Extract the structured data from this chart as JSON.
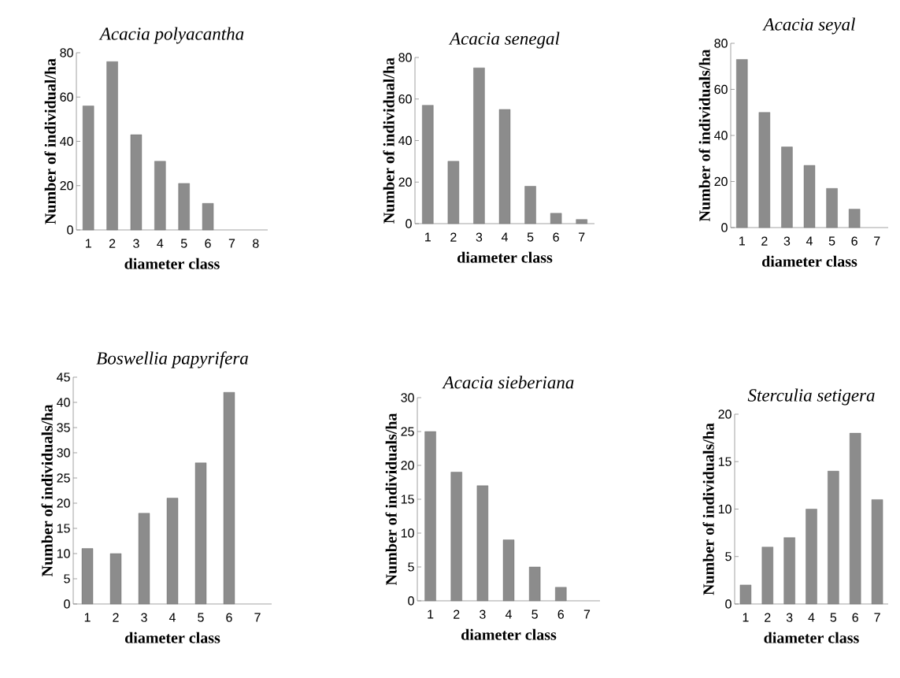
{
  "chart_data": [
    {
      "type": "bar",
      "title": "Acacia polyacantha",
      "xlabel": "diameter class",
      "ylabel": "Number of individual/ha",
      "categories": [
        "1",
        "2",
        "3",
        "4",
        "5",
        "6",
        "7",
        "8"
      ],
      "values": [
        56,
        76,
        43,
        31,
        21,
        12,
        null,
        null
      ],
      "color": "#8c8c8c",
      "ylim": [
        0,
        80
      ],
      "yticks": [
        0,
        20,
        40,
        60,
        80
      ]
    },
    {
      "type": "bar",
      "title": "Acacia senegal",
      "xlabel": "diameter class",
      "ylabel": "Number of individual/ha",
      "categories": [
        "1",
        "2",
        "3",
        "4",
        "5",
        "6",
        "7"
      ],
      "values": [
        57,
        30,
        75,
        55,
        18,
        5,
        2
      ],
      "color": "#8c8c8c",
      "ylim": [
        0,
        80
      ],
      "yticks": [
        0,
        20,
        40,
        60,
        80
      ]
    },
    {
      "type": "bar",
      "title": "Acacia seyal",
      "xlabel": "diameter class",
      "ylabel": "Number of individuals/ha",
      "categories": [
        "1",
        "2",
        "3",
        "4",
        "5",
        "6",
        "7"
      ],
      "values": [
        73,
        50,
        35,
        27,
        17,
        8,
        null
      ],
      "color": "#8c8c8c",
      "ylim": [
        0,
        80
      ],
      "yticks": [
        0,
        20,
        40,
        60,
        80
      ]
    },
    {
      "type": "bar",
      "title": "Boswellia papyrifera",
      "xlabel": "diameter class",
      "ylabel": "Number of individuals/ha",
      "categories": [
        "1",
        "2",
        "3",
        "4",
        "5",
        "6",
        "7"
      ],
      "values": [
        11,
        10,
        18,
        21,
        28,
        42,
        null
      ],
      "color": "#8c8c8c",
      "ylim": [
        0,
        45
      ],
      "yticks": [
        0,
        5,
        10,
        15,
        20,
        25,
        30,
        35,
        40,
        45
      ]
    },
    {
      "type": "bar",
      "title": "Acacia  sieberiana",
      "xlabel": "diameter class",
      "ylabel": "Number of individuals/ha",
      "categories": [
        "1",
        "2",
        "3",
        "4",
        "5",
        "6",
        "7"
      ],
      "values": [
        25,
        19,
        17,
        9,
        5,
        2,
        null
      ],
      "color": "#8c8c8c",
      "ylim": [
        0,
        30
      ],
      "yticks": [
        0,
        5,
        10,
        15,
        20,
        25,
        30
      ]
    },
    {
      "type": "bar",
      "title": "Sterculia setigera",
      "xlabel": "diameter class",
      "ylabel": "Number of individuals/ha",
      "categories": [
        "1",
        "2",
        "3",
        "4",
        "5",
        "6",
        "7"
      ],
      "values": [
        2,
        6,
        7,
        10,
        14,
        18,
        11
      ],
      "color": "#8c8c8c",
      "ylim": [
        0,
        20
      ],
      "yticks": [
        0,
        5,
        10,
        15,
        20
      ]
    }
  ]
}
